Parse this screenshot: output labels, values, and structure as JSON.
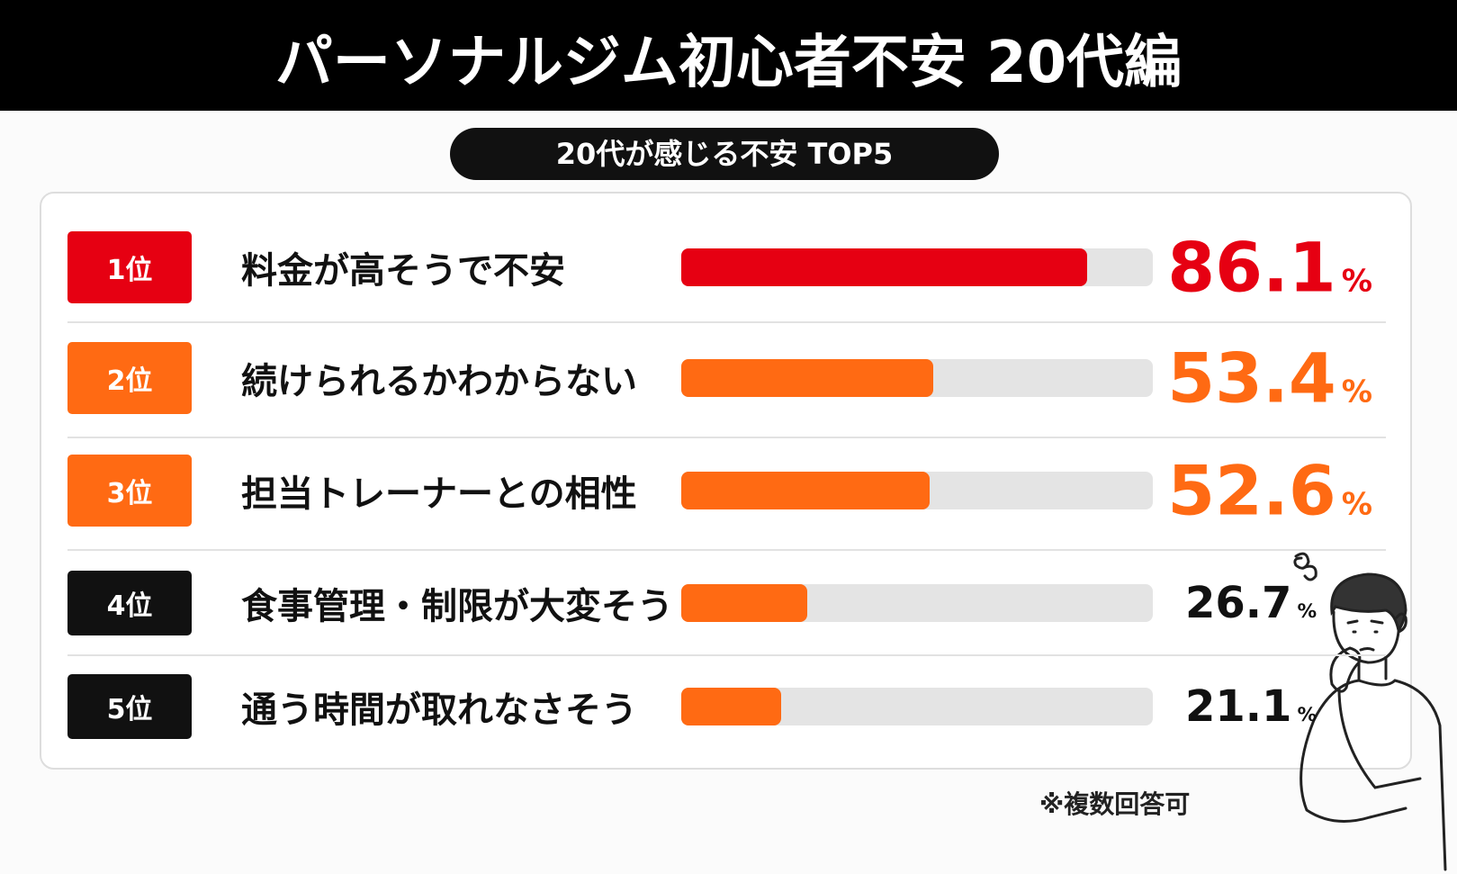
{
  "chart_data": {
    "type": "ranking-bar",
    "title": "パーソナルジム初心者不安 20代編",
    "subtitle": "20代が感じる不安 TOP5",
    "ranks": [
      "1位",
      "2位",
      "3位",
      "4位",
      "5位"
    ],
    "categories": [
      "料金が高そうで不安",
      "続けられるかわからない",
      "担当トレーナーとの相性",
      "食事管理・制限が大変そう",
      "通う時間が取れなさそう"
    ],
    "values": [
      86.1,
      53.4,
      52.6,
      26.7,
      21.1
    ],
    "value_labels": [
      "86.1%",
      "53.4%",
      "52.6%",
      "26.7%",
      "21.1%"
    ],
    "xlim": [
      0,
      100
    ],
    "bar_colors": [
      "#e60012",
      "#ff6a13",
      "#ff6a13",
      "#ff6a13",
      "#ff6a13"
    ],
    "badge_colors": [
      "#e60012",
      "#ff6a13",
      "#ff6a13",
      "#111111",
      "#111111"
    ],
    "label_colors": [
      "#e60012",
      "#ff6a13",
      "#ff6a13",
      "#111111",
      "#111111"
    ],
    "note": "※複数回答可"
  }
}
